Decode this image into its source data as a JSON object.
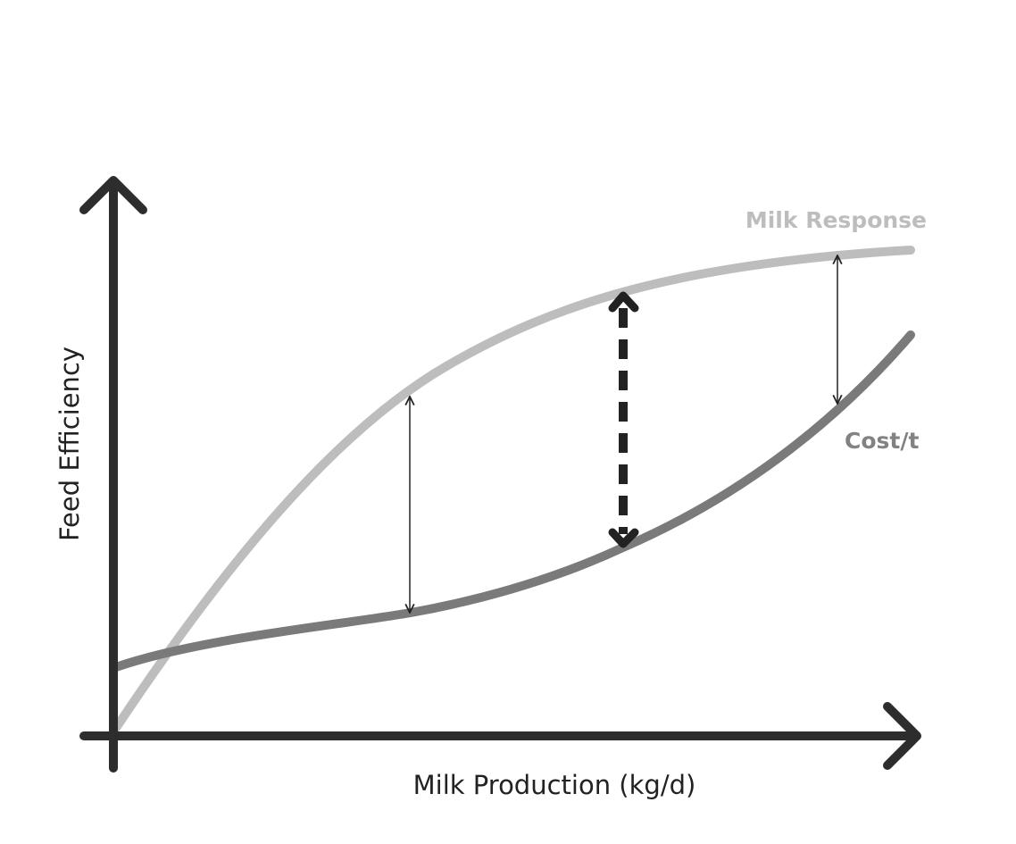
{
  "axes": {
    "x_label": "Milk Production (kg/d)",
    "y_label": "Feed Efficiency"
  },
  "curves": [
    {
      "label": "Milk Response"
    },
    {
      "label": "Cost/t"
    }
  ]
}
